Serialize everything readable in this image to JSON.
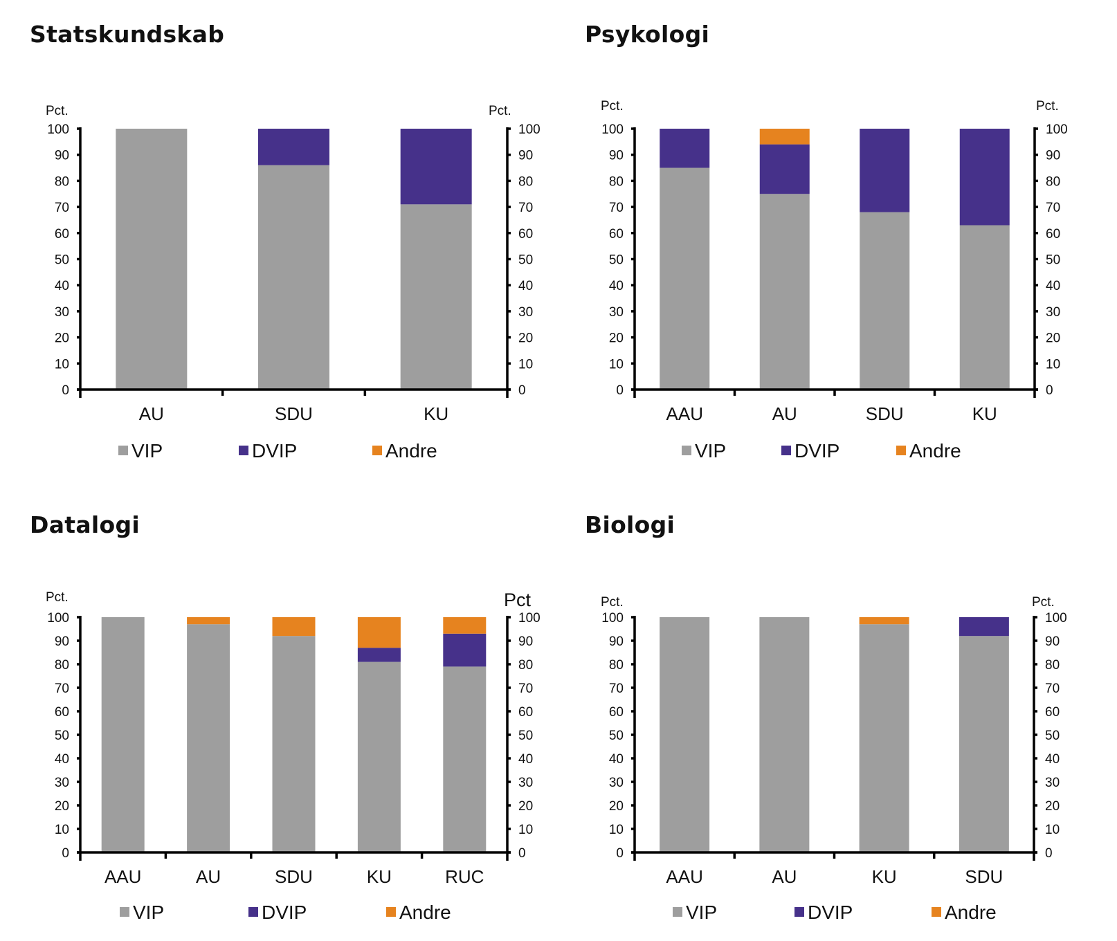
{
  "colors": {
    "VIP": "#9e9e9e",
    "DVIP": "#46318a",
    "Andre": "#e6831f",
    "axis": "#000000"
  },
  "chart_data": [
    {
      "type": "bar",
      "stacked": true,
      "title": "Statskundskab",
      "ylabel_left": "Pct.",
      "ylabel_right": "Pct.",
      "ylim": [
        0,
        100
      ],
      "yticks": [
        0,
        10,
        20,
        30,
        40,
        50,
        60,
        70,
        80,
        90,
        100
      ],
      "categories": [
        "AU",
        "SDU",
        "KU"
      ],
      "legend_position": "bottom",
      "series": [
        {
          "name": "VIP",
          "values": [
            100,
            86,
            71
          ]
        },
        {
          "name": "DVIP",
          "values": [
            0,
            14,
            29
          ]
        },
        {
          "name": "Andre",
          "values": [
            0,
            0,
            0
          ]
        }
      ]
    },
    {
      "type": "bar",
      "stacked": true,
      "title": "Psykologi",
      "ylabel_left": "Pct.",
      "ylabel_right": "Pct.",
      "ylim": [
        0,
        100
      ],
      "yticks": [
        0,
        10,
        20,
        30,
        40,
        50,
        60,
        70,
        80,
        90,
        100
      ],
      "categories": [
        "AAU",
        "AU",
        "SDU",
        "KU"
      ],
      "legend_position": "bottom",
      "series": [
        {
          "name": "VIP",
          "values": [
            85,
            75,
            68,
            63
          ]
        },
        {
          "name": "DVIP",
          "values": [
            15,
            19,
            32,
            37
          ]
        },
        {
          "name": "Andre",
          "values": [
            0,
            6,
            0,
            0
          ]
        }
      ]
    },
    {
      "type": "bar",
      "stacked": true,
      "title": "Datalogi",
      "ylabel_left": "Pct.",
      "ylabel_right": "Pct",
      "ylim": [
        0,
        100
      ],
      "yticks": [
        0,
        10,
        20,
        30,
        40,
        50,
        60,
        70,
        80,
        90,
        100
      ],
      "categories": [
        "AAU",
        "AU",
        "SDU",
        "KU",
        "RUC"
      ],
      "legend_position": "bottom",
      "series": [
        {
          "name": "VIP",
          "values": [
            100,
            97,
            92,
            81,
            79
          ]
        },
        {
          "name": "DVIP",
          "values": [
            0,
            0,
            0,
            6,
            14
          ]
        },
        {
          "name": "Andre",
          "values": [
            0,
            3,
            8,
            13,
            7
          ]
        }
      ]
    },
    {
      "type": "bar",
      "stacked": true,
      "title": "Biologi",
      "ylabel_left": "Pct.",
      "ylabel_right": "Pct.",
      "ylim": [
        0,
        100
      ],
      "yticks": [
        0,
        10,
        20,
        30,
        40,
        50,
        60,
        70,
        80,
        90,
        100
      ],
      "categories": [
        "AAU",
        "AU",
        "KU",
        "SDU"
      ],
      "legend_position": "bottom",
      "series": [
        {
          "name": "VIP",
          "values": [
            100,
            100,
            97,
            92
          ]
        },
        {
          "name": "DVIP",
          "values": [
            0,
            0,
            0,
            8
          ]
        },
        {
          "name": "Andre",
          "values": [
            0,
            0,
            3,
            0
          ]
        }
      ]
    }
  ]
}
